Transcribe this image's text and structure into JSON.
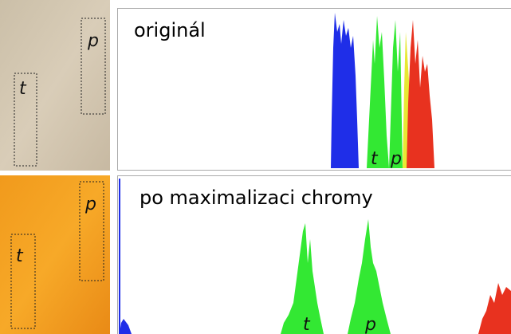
{
  "panels": [
    {
      "caption": "originál",
      "regions": [
        "t",
        "p"
      ],
      "histogram_labels": [
        "t",
        "p"
      ]
    },
    {
      "caption": "po maximalizaci chromy",
      "regions": [
        "t",
        "p"
      ],
      "histogram_labels": [
        "t",
        "p"
      ]
    }
  ]
}
